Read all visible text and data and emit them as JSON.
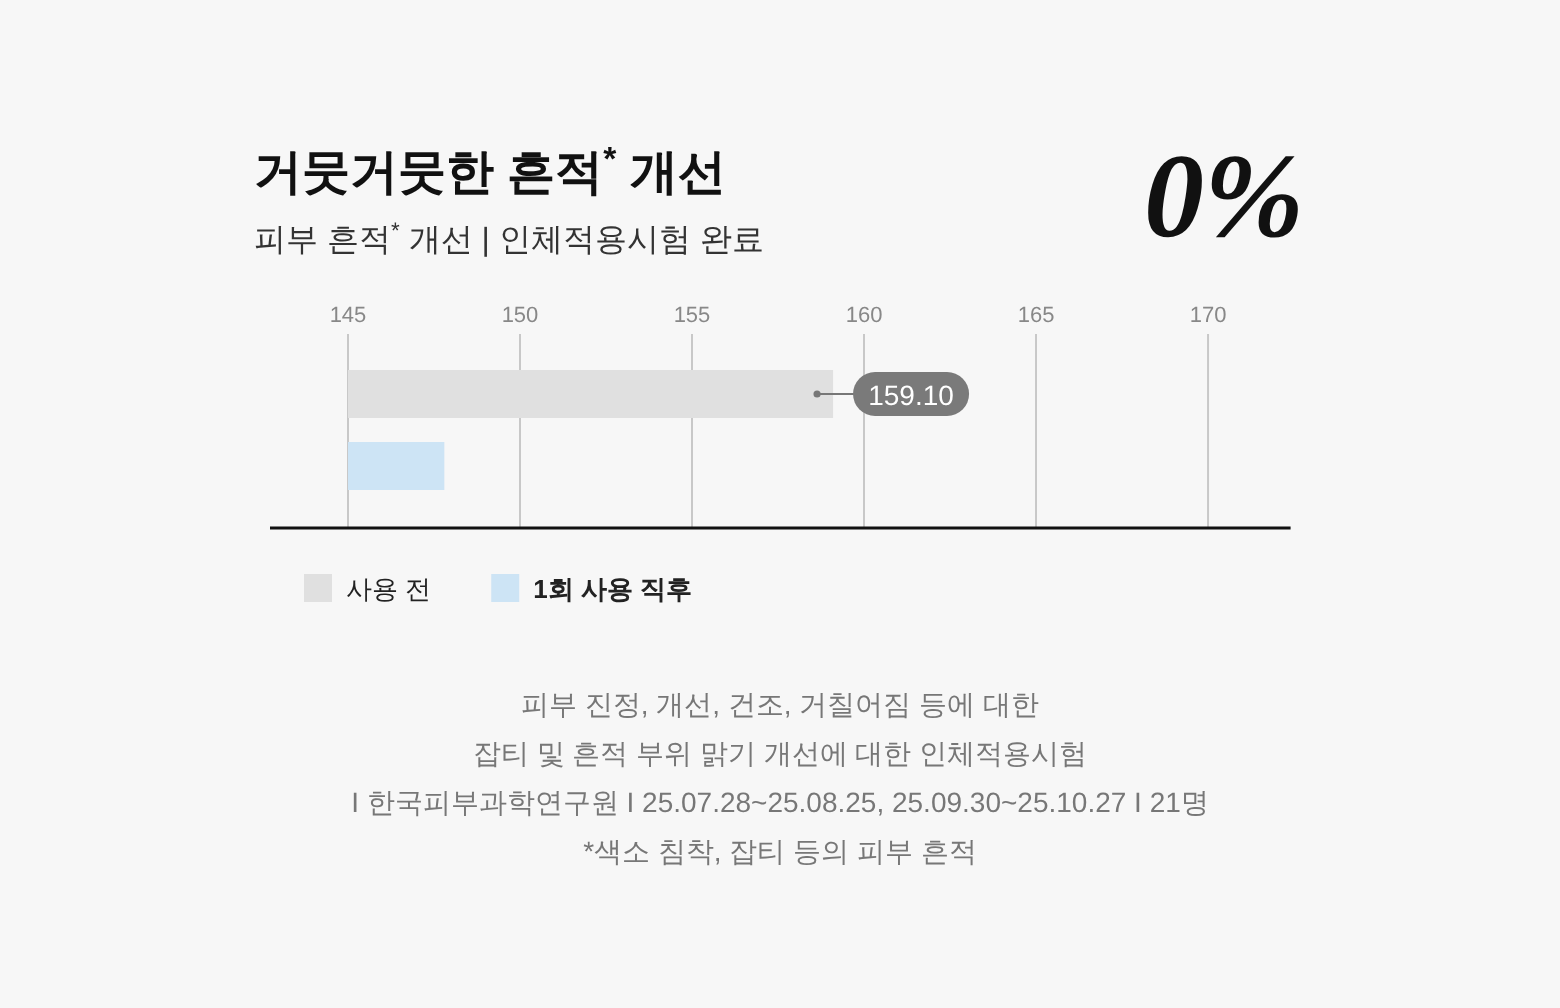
{
  "chart_data": {
    "type": "bar",
    "orientation": "horizontal",
    "title": "거뭇거뭇한 흔적$^{*}$ 개선",
    "subtitle": "피부 흔적$^{*}$ 개선 | 인체적용시험 완료",
    "categories": [
      null
    ],
    "series": [
      {
        "name": "사용 전",
        "color": "#e0e0e0",
        "values": [
          159.1
        ],
        "value_labels": [
          "159.10"
        ]
      },
      {
        "name": "1회 사용 직후",
        "color": "#cde4f5",
        "values": [
          147.8
        ]
      }
    ],
    "xlim": [
      145,
      172.4
    ],
    "xticks": [
      145,
      150,
      155,
      160,
      165,
      170
    ],
    "grid": "x",
    "legend": "bottom left",
    "annotations": [
      "0%",
      "피부 진정, 개선, 건조, 거칠어짐 등에 대한",
      "잡티 및 흔적 부위 맑기 개선에 대한 인체적용시험",
      "I 한국피부과학연구원 I 25.07.28~25.08.25, 25.09.30~25.10.27 I 21명",
      "*색소 침착, 잡티 등의 피부 흔적"
    ]
  }
}
